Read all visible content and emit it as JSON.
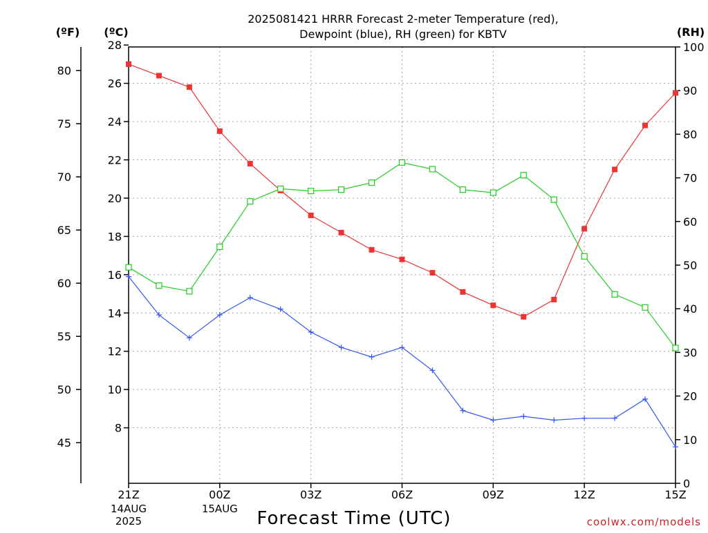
{
  "chart_data": {
    "type": "line",
    "title_lines": [
      "2025081421 HRRR Forecast 2-meter Temperature (red),",
      "Dewpoint (blue), RH (green) for KBTV"
    ],
    "xlabel": "Forecast Time (UTC)",
    "credit": "coolwx.com/models",
    "axis_units": {
      "fahrenheit": "(ºF)",
      "celsius": "(ºC)",
      "rh": "(RH)"
    },
    "x_hours": [
      0,
      1,
      2,
      3,
      4,
      5,
      6,
      7,
      8,
      9,
      10,
      11,
      12,
      13,
      14,
      15,
      16,
      17,
      18
    ],
    "x_ticks": [
      {
        "hour": 0,
        "label": "21Z",
        "sub": [
          "14AUG",
          "2025"
        ]
      },
      {
        "hour": 3,
        "label": "00Z",
        "sub": [
          "15AUG"
        ]
      },
      {
        "hour": 6,
        "label": "03Z",
        "sub": []
      },
      {
        "hour": 9,
        "label": "06Z",
        "sub": []
      },
      {
        "hour": 12,
        "label": "09Z",
        "sub": []
      },
      {
        "hour": 15,
        "label": "12Z",
        "sub": []
      },
      {
        "hour": 18,
        "label": "15Z",
        "sub": []
      }
    ],
    "celsius_ylim": [
      5.1,
      27.9
    ],
    "celsius_ticks": [
      8,
      10,
      12,
      14,
      16,
      18,
      20,
      22,
      24,
      26,
      28
    ],
    "fahrenheit_ticks": [
      45,
      50,
      55,
      60,
      65,
      70,
      75,
      80
    ],
    "rh_ylim": [
      0,
      100
    ],
    "rh_ticks": [
      0,
      10,
      20,
      30,
      40,
      50,
      60,
      70,
      80,
      90,
      100
    ],
    "series": [
      {
        "name": "Temperature",
        "unit": "C",
        "color": "#ee3333",
        "marker": "filled-square",
        "values": [
          27.0,
          26.4,
          25.8,
          23.5,
          21.8,
          20.4,
          19.1,
          18.2,
          17.3,
          16.8,
          16.1,
          15.1,
          14.4,
          13.8,
          14.7,
          18.4,
          21.5,
          23.8,
          25.5
        ]
      },
      {
        "name": "Dewpoint",
        "unit": "C",
        "color": "#3355ee",
        "marker": "plus",
        "values": [
          15.9,
          13.9,
          12.7,
          13.9,
          14.8,
          14.2,
          13.0,
          12.2,
          11.7,
          12.2,
          11.0,
          8.9,
          8.4,
          8.6,
          8.4,
          8.5,
          8.5,
          9.5,
          7.0
        ]
      },
      {
        "name": "RH",
        "unit": "%",
        "color": "#22cc22",
        "marker": "open-square",
        "values": [
          49.5,
          45.3,
          44.0,
          54.2,
          64.6,
          67.5,
          67.0,
          67.3,
          68.9,
          73.5,
          72.0,
          67.3,
          66.6,
          70.6,
          65.0,
          52.0,
          43.3,
          40.3,
          31.0
        ]
      }
    ]
  }
}
